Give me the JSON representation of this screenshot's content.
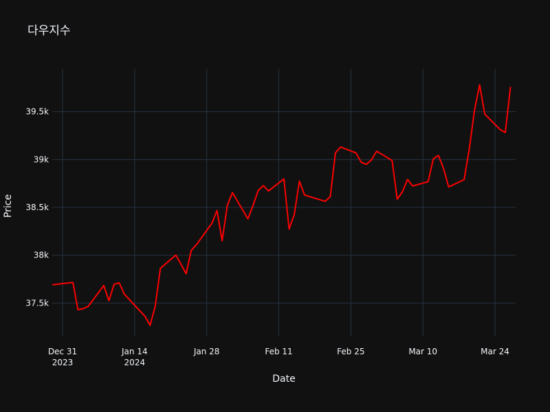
{
  "chart_data": {
    "type": "line",
    "title": "다우지수",
    "xlabel": "Date",
    "ylabel": "Price",
    "xlim": [
      "2023-12-29",
      "2024-03-28"
    ],
    "ylim": [
      37150,
      39950
    ],
    "grid": true,
    "y_ticks": [
      37500,
      38000,
      38500,
      39000,
      39500
    ],
    "y_tick_labels": [
      "37.5k",
      "38k",
      "38.5k",
      "39k",
      "39.5k"
    ],
    "x_ticks": [
      "2023-12-31",
      "2024-01-14",
      "2024-01-28",
      "2024-02-11",
      "2024-02-25",
      "2024-03-10",
      "2024-03-24"
    ],
    "x_tick_labels": [
      [
        "Dec 31",
        "2023"
      ],
      [
        "Jan 14",
        "2024"
      ],
      [
        "Jan 28"
      ],
      [
        "Feb 11"
      ],
      [
        "Feb 25"
      ],
      [
        "Mar 10"
      ],
      [
        "Mar 24"
      ]
    ],
    "line_color": "#ff0000",
    "series": [
      {
        "x": [
          "2023-12-29",
          "2024-01-02",
          "2024-01-03",
          "2024-01-04",
          "2024-01-05",
          "2024-01-08",
          "2024-01-09",
          "2024-01-10",
          "2024-01-11",
          "2024-01-12",
          "2024-01-16",
          "2024-01-17",
          "2024-01-18",
          "2024-01-19",
          "2024-01-22",
          "2024-01-23",
          "2024-01-24",
          "2024-01-25",
          "2024-01-26",
          "2024-01-29",
          "2024-01-30",
          "2024-01-31",
          "2024-02-01",
          "2024-02-02",
          "2024-02-05",
          "2024-02-06",
          "2024-02-07",
          "2024-02-08",
          "2024-02-09",
          "2024-02-12",
          "2024-02-13",
          "2024-02-14",
          "2024-02-15",
          "2024-02-16",
          "2024-02-20",
          "2024-02-21",
          "2024-02-22",
          "2024-02-23",
          "2024-02-26",
          "2024-02-27",
          "2024-02-28",
          "2024-02-29",
          "2024-03-01",
          "2024-03-04",
          "2024-03-05",
          "2024-03-06",
          "2024-03-07",
          "2024-03-08",
          "2024-03-11",
          "2024-03-12",
          "2024-03-13",
          "2024-03-14",
          "2024-03-15",
          "2024-03-18",
          "2024-03-19",
          "2024-03-20",
          "2024-03-21",
          "2024-03-22",
          "2024-03-25",
          "2024-03-26",
          "2024-03-27"
        ],
        "values": [
          37690,
          37715,
          37430,
          37440,
          37466,
          37683,
          37525,
          37695,
          37711,
          37593,
          37361,
          37266,
          37468,
          37863,
          38001,
          37906,
          37806,
          38050,
          38109,
          38333,
          38467,
          38150,
          38519,
          38654,
          38380,
          38521,
          38677,
          38727,
          38671,
          38797,
          38273,
          38424,
          38773,
          38628,
          38563,
          38612,
          39069,
          39131,
          39069,
          38972,
          38949,
          38996,
          39087,
          38990,
          38585,
          38661,
          38791,
          38723,
          38769,
          39005,
          39043,
          38905,
          38714,
          38790,
          39110,
          39512,
          39781,
          39475,
          39313,
          39282,
          39760
        ]
      }
    ]
  }
}
